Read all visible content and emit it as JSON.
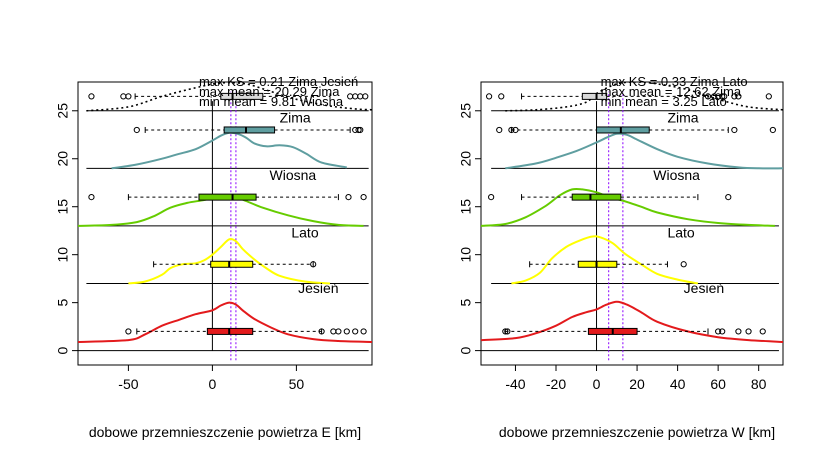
{
  "chart_data": [
    {
      "type": "density-boxplot",
      "panel": "E",
      "xlabel": "dobowe przemnieszczenie powietrza E [km]",
      "ylabel": "",
      "xlim": [
        -80,
        95
      ],
      "ylim": [
        -1.5,
        28
      ],
      "xticks": [
        -50,
        0,
        50
      ],
      "yticks": [
        0,
        5,
        10,
        15,
        20,
        25
      ],
      "grid": false,
      "notes": [
        "max KS = 0.21 Zima Jesień",
        "max mean = 20.29 Zima",
        "min mean = 9.81 Wiosna"
      ],
      "vlines": {
        "zero": 0,
        "mean_lo": 11,
        "mean_hi": 14
      },
      "baselines": [
        0,
        7,
        13,
        19,
        25
      ],
      "seasons": [
        {
          "name": "Jesień",
          "color": "#e31a1c",
          "baseline": 0,
          "label_y": 6,
          "density_x": [
            -80,
            -50,
            -40,
            -30,
            -20,
            -10,
            0,
            5,
            10,
            14,
            18,
            25,
            35,
            45,
            60,
            75,
            95
          ],
          "density_y": [
            0.9,
            1.1,
            1.7,
            2.6,
            3.2,
            3.8,
            4.2,
            4.7,
            5.0,
            4.8,
            4.2,
            3.3,
            2.4,
            1.7,
            1.2,
            1.0,
            0.9
          ],
          "box": {
            "y": 2,
            "whisker_lo": -45,
            "q1": -3,
            "median": 10,
            "q3": 24,
            "whisker_hi": 65
          },
          "outliers": [
            -50,
            65,
            72,
            75,
            80,
            85,
            90
          ]
        },
        {
          "name": "Lato",
          "color": "#ffff00",
          "baseline": 7,
          "label_y": 11.8,
          "density_x": [
            -50,
            -40,
            -30,
            -25,
            -18,
            -10,
            -5,
            0,
            5,
            10,
            14,
            18,
            25,
            32,
            40,
            55,
            70
          ],
          "density_y": [
            7.0,
            7.2,
            7.9,
            8.6,
            9.0,
            9.1,
            9.4,
            10.0,
            10.8,
            11.6,
            11.4,
            10.6,
            9.5,
            8.6,
            7.8,
            7.2,
            7.0
          ],
          "box": {
            "y": 9,
            "whisker_lo": -35,
            "q1": -1,
            "median": 10,
            "q3": 24,
            "whisker_hi": 60
          },
          "outliers": [
            60
          ]
        },
        {
          "name": "Wiosna",
          "color": "#66cc00",
          "baseline": 13,
          "label_y": 17.8,
          "density_x": [
            -80,
            -60,
            -45,
            -35,
            -25,
            -15,
            -5,
            5,
            12,
            20,
            30,
            45,
            60,
            75,
            90
          ],
          "density_y": [
            13.0,
            13.1,
            13.4,
            14.0,
            14.9,
            15.4,
            15.7,
            16.1,
            16.1,
            15.6,
            14.9,
            14.1,
            13.5,
            13.1,
            13.0
          ],
          "box": {
            "y": 16,
            "whisker_lo": -50,
            "q1": -8,
            "median": 12,
            "q3": 26,
            "whisker_hi": 75
          },
          "outliers": [
            -72,
            81,
            90
          ]
        },
        {
          "name": "Zima",
          "color": "#5f9ea0",
          "baseline": 19,
          "label_y": 23.8,
          "density_x": [
            -60,
            -45,
            -30,
            -20,
            -10,
            0,
            5,
            10,
            15,
            20,
            25,
            32,
            40,
            48,
            56,
            65,
            80
          ],
          "density_y": [
            19.0,
            19.4,
            20.0,
            20.5,
            21.0,
            21.9,
            22.4,
            22.7,
            22.6,
            22.2,
            21.6,
            21.3,
            21.4,
            21.2,
            20.5,
            19.6,
            19.1
          ],
          "box": {
            "y": 23,
            "whisker_lo": -40,
            "q1": 7,
            "median": 20,
            "q3": 37,
            "whisker_hi": 82
          },
          "outliers": [
            -45,
            85,
            87,
            88
          ]
        }
      ],
      "overall": {
        "box": {
          "y": 26.5,
          "whisker_lo": -46,
          "q1": 5,
          "median": 12,
          "q3": 30,
          "whisker_hi": 70
        },
        "outliers": [
          -72,
          -53,
          -50,
          82,
          85,
          88,
          91
        ],
        "density_x": [
          -75,
          -50,
          -30,
          -10,
          5,
          20,
          35,
          50,
          70,
          85,
          95
        ],
        "density_y": [
          25.0,
          25.4,
          26.5,
          27.4,
          27.9,
          27.8,
          27.0,
          26.2,
          25.5,
          25.2,
          25.1
        ]
      }
    },
    {
      "type": "density-boxplot",
      "panel": "W",
      "xlabel": "dobowe przemnieszczenie powietrza W [km]",
      "ylabel": "",
      "xlim": [
        -57,
        92
      ],
      "ylim": [
        -1.5,
        28
      ],
      "xticks": [
        -40,
        -20,
        0,
        20,
        40,
        60,
        80
      ],
      "yticks": [
        0,
        5,
        10,
        15,
        20,
        25
      ],
      "grid": false,
      "notes": [
        "max KS = 0.33 Zima Lato",
        "max mean = 12.62 Zima",
        "min mean = 3.25 Lato"
      ],
      "vlines": {
        "zero": 0,
        "mean_lo": 6,
        "mean_hi": 13
      },
      "baselines": [
        0,
        7,
        13,
        19,
        25
      ],
      "seasons": [
        {
          "name": "Jesień",
          "color": "#e31a1c",
          "baseline": 0,
          "label_y": 6,
          "density_x": [
            -57,
            -40,
            -30,
            -20,
            -12,
            -5,
            0,
            5,
            10,
            15,
            22,
            30,
            45,
            60,
            75,
            92
          ],
          "density_y": [
            1.1,
            1.3,
            1.8,
            2.6,
            3.5,
            4.0,
            4.3,
            4.8,
            5.1,
            4.8,
            4.0,
            3.0,
            2.0,
            1.4,
            1.1,
            0.9
          ],
          "box": {
            "y": 2,
            "whisker_lo": -45,
            "q1": -4,
            "median": 8,
            "q3": 20,
            "whisker_hi": 55
          },
          "outliers": [
            -45,
            -44,
            60,
            62,
            70,
            75,
            82
          ]
        },
        {
          "name": "Lato",
          "color": "#ffff00",
          "baseline": 7,
          "label_y": 11.8,
          "density_x": [
            -42,
            -35,
            -28,
            -22,
            -15,
            -8,
            -2,
            2,
            8,
            14,
            22,
            30,
            40,
            50
          ],
          "density_y": [
            7.0,
            7.3,
            8.1,
            9.6,
            10.8,
            11.5,
            11.9,
            11.8,
            11.2,
            10.1,
            9.0,
            8.0,
            7.4,
            7.0
          ],
          "box": {
            "y": 9,
            "whisker_lo": -33,
            "q1": -9,
            "median": 0,
            "q3": 10,
            "whisker_hi": 35
          },
          "outliers": [
            43
          ]
        },
        {
          "name": "Wiosna",
          "color": "#66cc00",
          "baseline": 13,
          "label_y": 17.8,
          "density_x": [
            -57,
            -45,
            -35,
            -25,
            -18,
            -12,
            -7,
            0,
            5,
            10,
            15,
            22,
            30,
            45,
            60,
            75,
            88
          ],
          "density_y": [
            13.0,
            13.2,
            13.9,
            15.1,
            16.2,
            16.8,
            16.8,
            16.5,
            16.1,
            15.8,
            15.5,
            15.0,
            14.4,
            13.7,
            13.3,
            13.1,
            13.0
          ],
          "box": {
            "y": 16,
            "whisker_lo": -37,
            "q1": -12,
            "median": -3,
            "q3": 12,
            "whisker_hi": 50
          },
          "outliers": [
            -52,
            65
          ]
        },
        {
          "name": "Zima",
          "color": "#5f9ea0",
          "baseline": 19,
          "label_y": 23.8,
          "density_x": [
            -45,
            -30,
            -20,
            -10,
            0,
            5,
            10,
            15,
            20,
            30,
            40,
            55,
            70,
            80,
            92
          ],
          "density_y": [
            19.0,
            19.5,
            20.1,
            20.8,
            21.7,
            22.2,
            22.6,
            22.5,
            22.0,
            21.0,
            20.2,
            19.5,
            19.1,
            19.0,
            19.0
          ],
          "box": {
            "y": 23,
            "whisker_lo": -42,
            "q1": 0,
            "median": 12,
            "q3": 26,
            "whisker_hi": 65
          },
          "outliers": [
            -48,
            -42,
            -40,
            68,
            87
          ]
        }
      ],
      "overall": {
        "box": {
          "y": 26.5,
          "whisker_lo": -37,
          "q1": -7,
          "median": 0,
          "q3": 5,
          "whisker_hi": 55
        },
        "outliers": [
          -53,
          -47,
          55,
          58,
          60,
          62,
          63,
          68,
          70,
          85
        ],
        "density_x": [
          -45,
          -30,
          -15,
          -5,
          0,
          10,
          20,
          30,
          45,
          60,
          75,
          92
        ],
        "density_y": [
          25.0,
          25.1,
          25.4,
          25.9,
          26.8,
          27.8,
          28.0,
          27.8,
          27.2,
          26.2,
          25.4,
          25.1
        ]
      }
    }
  ]
}
